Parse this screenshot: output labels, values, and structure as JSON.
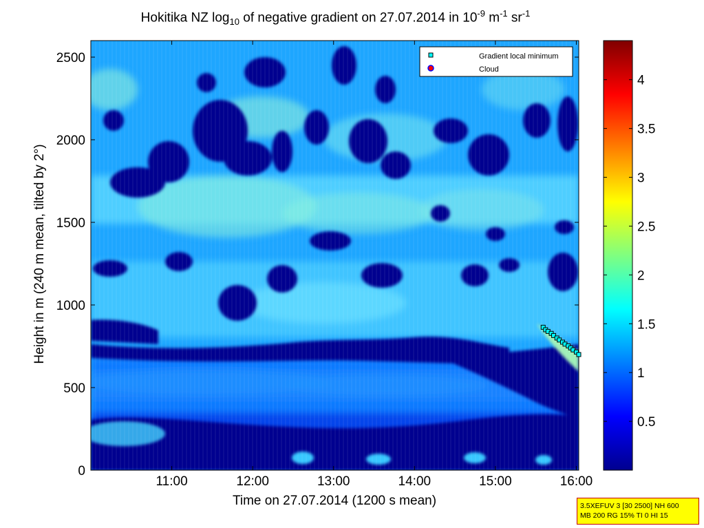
{
  "chart_data": {
    "type": "heatmap",
    "title": {
      "prefix": "Hokitika NZ log",
      "sub": "10",
      "middle": " of negative gradient on 27.07.2014 in 10",
      "sup1": "-9",
      "mid2": " m",
      "sup2": "-1",
      "mid3": " sr",
      "sup3": "-1"
    },
    "xlabel": "Time on 27.07.2014 (1200 s mean)",
    "ylabel": "Height in m (240 m mean, tilted by 2°)",
    "x_ticks": [
      "11:00",
      "12:00",
      "13:00",
      "14:00",
      "15:00",
      "16:00"
    ],
    "x_tick_hours": [
      11,
      12,
      13,
      14,
      15,
      16
    ],
    "xlim_hours": [
      10.0,
      16.03
    ],
    "y_ticks": [
      "0",
      "500",
      "1000",
      "1500",
      "2000",
      "2500"
    ],
    "y_tick_values": [
      0,
      500,
      1000,
      1500,
      2000,
      2500
    ],
    "ylim": [
      0,
      2600
    ],
    "colorbar": {
      "range": [
        0,
        4.4
      ],
      "ticks": [
        "0.5",
        "1",
        "1.5",
        "2",
        "2.5",
        "3",
        "3.5",
        "4"
      ],
      "tick_values": [
        0.5,
        1,
        1.5,
        2,
        2.5,
        3,
        3.5,
        4
      ],
      "colormap": "jet"
    },
    "legend": {
      "placement": "top-right",
      "entries": [
        {
          "label": "Gradient local minimum",
          "marker": "square",
          "color": "#00ffff"
        },
        {
          "label": "Cloud",
          "marker": "circle",
          "color": "#ff0000",
          "edge": "#0000ff"
        }
      ]
    },
    "gradient_minimum_points": [
      {
        "t": 15.59,
        "h": 865
      },
      {
        "t": 15.62,
        "h": 850
      },
      {
        "t": 15.65,
        "h": 840
      },
      {
        "t": 15.69,
        "h": 828
      },
      {
        "t": 15.72,
        "h": 815
      },
      {
        "t": 15.76,
        "h": 800
      },
      {
        "t": 15.79,
        "h": 788
      },
      {
        "t": 15.83,
        "h": 775
      },
      {
        "t": 15.86,
        "h": 763
      },
      {
        "t": 15.9,
        "h": 752
      },
      {
        "t": 15.93,
        "h": 740
      },
      {
        "t": 15.96,
        "h": 728
      },
      {
        "t": 16.0,
        "h": 715
      },
      {
        "t": 16.03,
        "h": 700
      }
    ]
  },
  "settings_box": {
    "line1": "3.5XEFUV 3 [30 2500] NH 600",
    "line2": "MB 200 RG 15% TI 0 HI 15"
  }
}
